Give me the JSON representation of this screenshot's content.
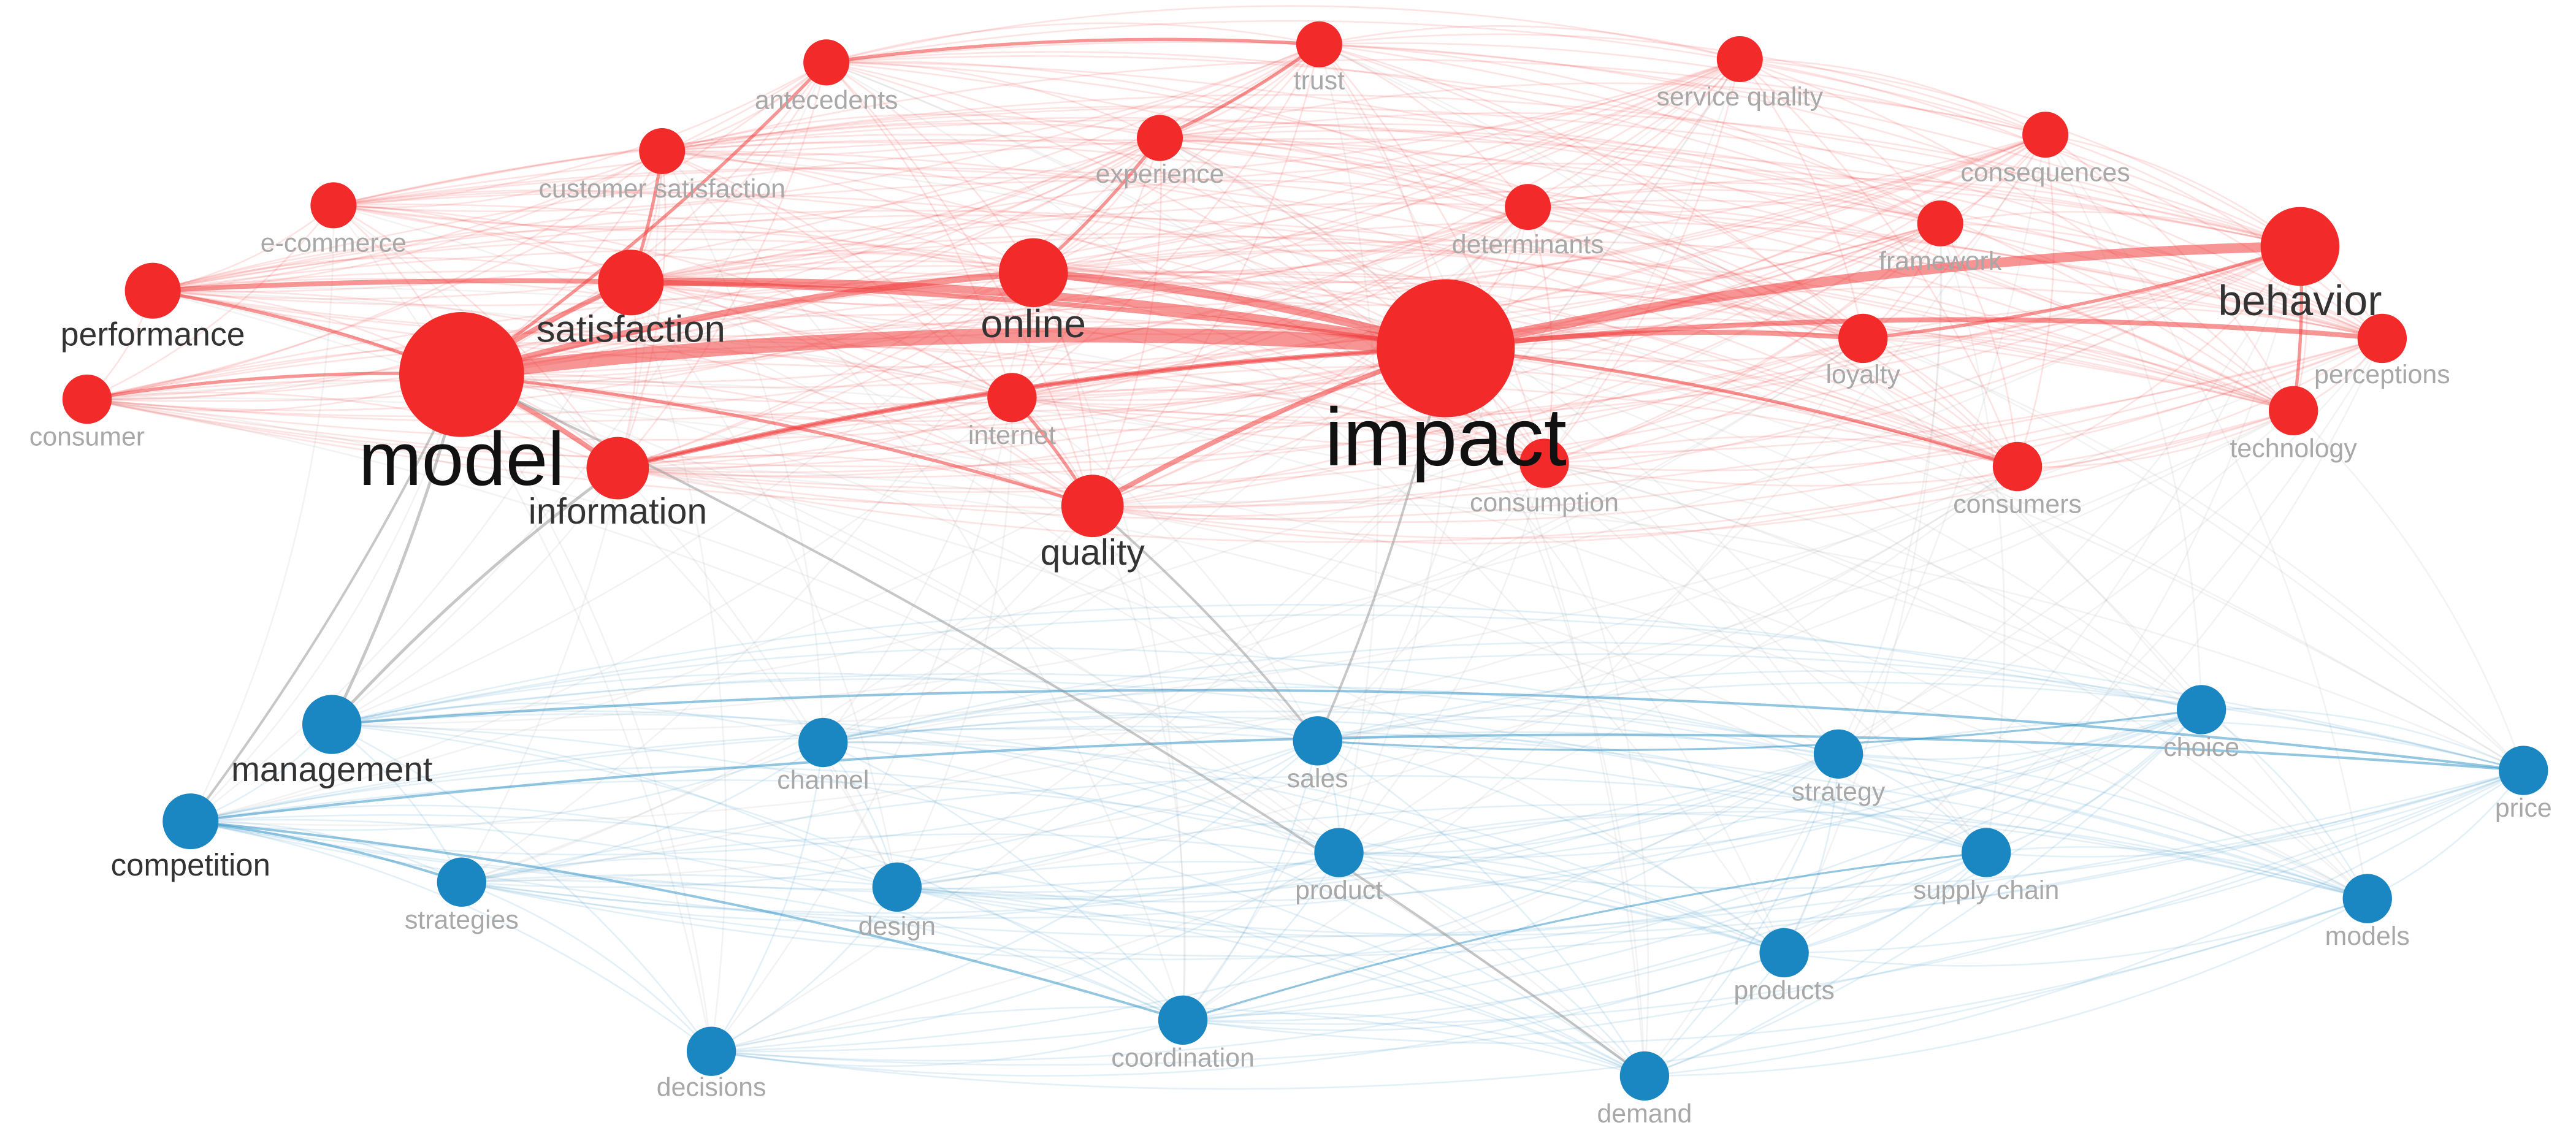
{
  "nodes": [
    {
      "label": "antecedents"
    },
    {
      "label": "trust"
    },
    {
      "label": "service quality"
    },
    {
      "label": "customer satisfaction"
    },
    {
      "label": "experience"
    },
    {
      "label": "consequences"
    },
    {
      "label": "e-commerce"
    },
    {
      "label": "determinants"
    },
    {
      "label": "framework"
    },
    {
      "label": "performance"
    },
    {
      "label": "satisfaction"
    },
    {
      "label": "online"
    },
    {
      "label": "behavior"
    },
    {
      "label": "impact"
    },
    {
      "label": "model"
    },
    {
      "label": "loyalty"
    },
    {
      "label": "perceptions"
    },
    {
      "label": "consumer"
    },
    {
      "label": "internet"
    },
    {
      "label": "technology"
    },
    {
      "label": "information"
    },
    {
      "label": "consumption"
    },
    {
      "label": "consumers"
    },
    {
      "label": "quality"
    },
    {
      "label": "management"
    },
    {
      "label": "channel"
    },
    {
      "label": "sales"
    },
    {
      "label": "choice"
    },
    {
      "label": "strategy"
    },
    {
      "label": "price"
    },
    {
      "label": "competition"
    },
    {
      "label": "product"
    },
    {
      "label": "supply chain"
    },
    {
      "label": "strategies"
    },
    {
      "label": "design"
    },
    {
      "label": "models"
    },
    {
      "label": "products"
    },
    {
      "label": "coordination"
    },
    {
      "label": "decisions"
    },
    {
      "label": "demand"
    }
  ]
}
